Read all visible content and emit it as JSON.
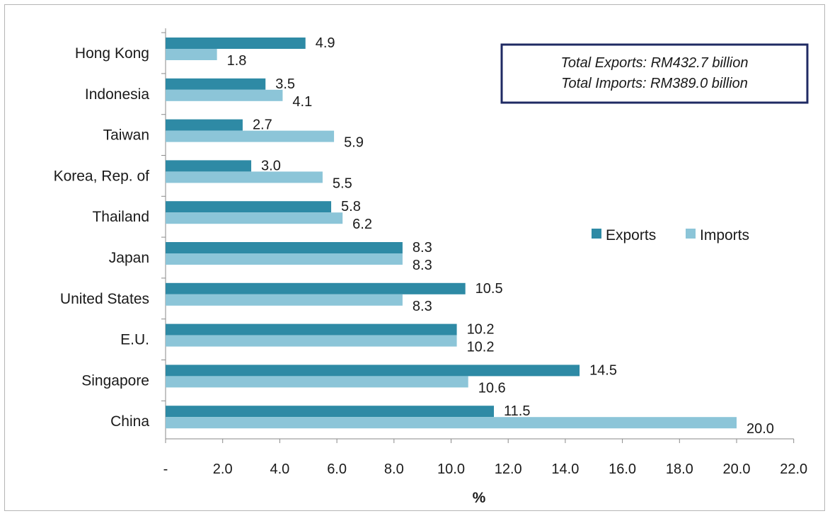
{
  "chart_data": {
    "type": "bar",
    "orientation": "horizontal",
    "categories": [
      "Hong Kong",
      "Indonesia",
      "Taiwan",
      "Korea, Rep. of",
      "Thailand",
      "Japan",
      "United States",
      "E.U.",
      "Singapore",
      "China"
    ],
    "series": [
      {
        "name": "Exports",
        "color": "#2e8aa5",
        "values": [
          4.9,
          3.5,
          2.7,
          3.0,
          5.8,
          8.3,
          10.5,
          10.2,
          14.5,
          11.5
        ],
        "labels": [
          "4.9",
          "3.5",
          "2.7",
          "3.0",
          "5.8",
          "8.3",
          "10.5",
          "10.2",
          "14.5",
          "11.5"
        ]
      },
      {
        "name": "Imports",
        "color": "#8cc5d8",
        "values": [
          1.8,
          4.1,
          5.9,
          5.5,
          6.2,
          8.3,
          8.3,
          10.2,
          10.6,
          20.0
        ],
        "labels": [
          "1.8",
          "4.1",
          "5.9",
          "5.5",
          "6.2",
          "8.3",
          "8.3",
          "10.2",
          "10.6",
          "20.0"
        ]
      }
    ],
    "xlim": [
      0,
      22
    ],
    "x_ticks": [
      0,
      2,
      4,
      6,
      8,
      10,
      12,
      14,
      16,
      18,
      20,
      22
    ],
    "x_tick_labels": [
      "-",
      "2.0",
      "4.0",
      "6.0",
      "8.0",
      "10.0",
      "12.0",
      "14.0",
      "16.0",
      "18.0",
      "20.0",
      "22.0"
    ],
    "xlabel": "%",
    "legend_position": "right",
    "grid": false,
    "annotation": {
      "lines": [
        "Total Exports: RM432.7 billion",
        "Total Imports: RM389.0 billion"
      ],
      "border_color": "#1f2a63"
    }
  }
}
